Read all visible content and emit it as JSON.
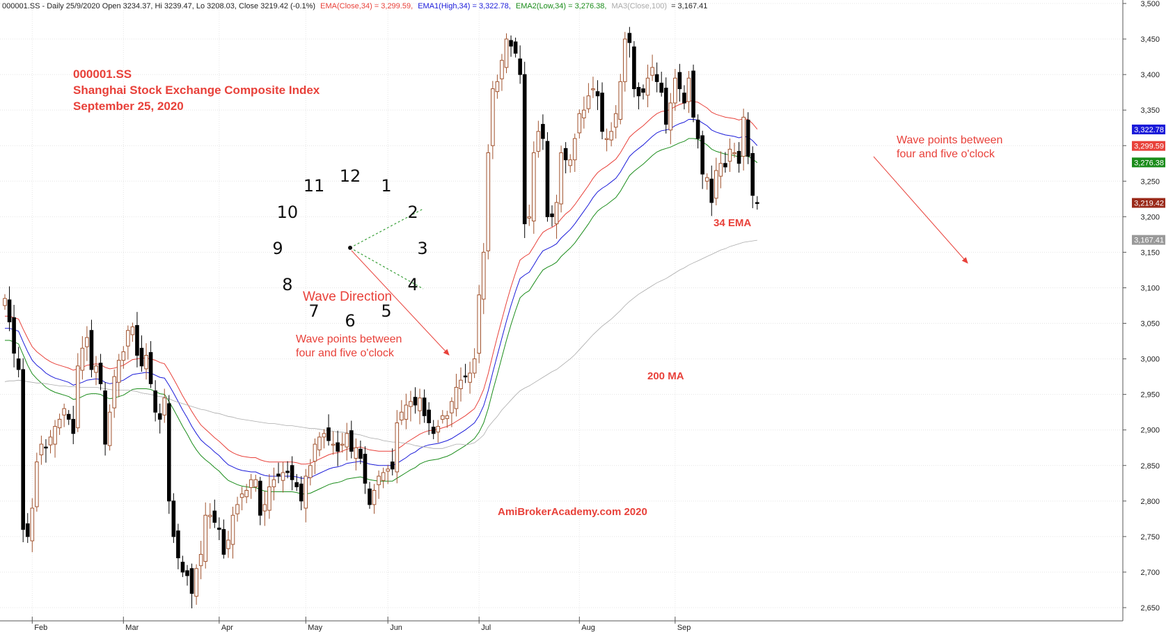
{
  "header": {
    "symbol_line": "000001.SS - Daily 25/9/2020 Open 3234.37, Hi 3239.47, Lo 3208.03, Close 3219.42 (-0.1%)",
    "ema_close": "EMA(Close,34) = 3,299.59,",
    "ema_high": "EMA1(High,34) = 3,322.78,",
    "ema_low": "EMA2(Low,34) = 3,276.38,",
    "ma_close_label": "MA3(Close,100)",
    "ma_close_value": "= 3,167.41"
  },
  "title": {
    "line1": "000001.SS",
    "line2": "Shanghai Stock Exchange Composite Index",
    "line3": "September 25, 2020"
  },
  "annotations": {
    "wave_direction": "Wave  Direction",
    "wave_note_1a": "Wave points between",
    "wave_note_1b": "four and five o'clock",
    "wave_note_2a": "Wave points between",
    "wave_note_2b": "four and five o'clock",
    "ema_label": "34 EMA",
    "ma_label": "200 MA",
    "watermark": "AmiBrokerAcademy.com  2020"
  },
  "clock": {
    "numbers": [
      "12",
      "1",
      "2",
      "3",
      "4",
      "5",
      "6",
      "7",
      "8",
      "9",
      "10",
      "11"
    ]
  },
  "colors": {
    "ema_close": "#e8413a",
    "ema_high": "#1a1ad9",
    "ema_low": "#1a8c1a",
    "ma": "#aaaaaa",
    "candle_up": "#a0522d",
    "candle_down": "#000000",
    "annotation": "#e8413a"
  },
  "chart_data": {
    "type": "candlestick",
    "symbol": "000001.SS",
    "ylim": [
      2635,
      3500
    ],
    "y_ticks": [
      2650,
      2700,
      2750,
      2800,
      2850,
      2900,
      2950,
      3000,
      3050,
      3100,
      3150,
      3200,
      3250,
      3300,
      3350,
      3400,
      3450,
      3500
    ],
    "y_tick_labels": [
      "2,650",
      "2,700",
      "2,750",
      "2,800",
      "2,850",
      "2,900",
      "2,950",
      "3,000",
      "3,050",
      "3,100",
      "3,150",
      "3,200",
      "3,250",
      "3,300",
      "3,350",
      "3,400",
      "3,450",
      "3,500"
    ],
    "x_ticks": [
      {
        "label": "Feb",
        "day": 6
      },
      {
        "label": "Mar",
        "day": 26
      },
      {
        "label": "Apr",
        "day": 47
      },
      {
        "label": "May",
        "day": 66
      },
      {
        "label": "Jun",
        "day": 84
      },
      {
        "label": "Jul",
        "day": 104
      },
      {
        "label": "Aug",
        "day": 126
      },
      {
        "label": "Sep",
        "day": 147
      }
    ],
    "value_badges": [
      {
        "label": "3,322.78",
        "value": 3322.78,
        "color": "#1a1ad9"
      },
      {
        "label": "3,299.59",
        "value": 3299.59,
        "color": "#e8413a"
      },
      {
        "label": "3,276.38",
        "value": 3276.38,
        "color": "#1a8c1a"
      },
      {
        "label": "3,219.42",
        "value": 3219.42,
        "color": "#9a2a1a"
      },
      {
        "label": "3,167.41",
        "value": 3167.41,
        "color": "#999999"
      }
    ],
    "closes": [
      3085,
      3052,
      3008,
      2985,
      2760,
      2750,
      2790,
      2855,
      2880,
      2875,
      2890,
      2905,
      2915,
      2930,
      2915,
      2895,
      2990,
      3015,
      3030,
      2985,
      2990,
      2965,
      2880,
      2925,
      2975,
      2998,
      3010,
      3040,
      3045,
      3005,
      2990,
      3005,
      2965,
      2925,
      2915,
      2945,
      2800,
      2750,
      2720,
      2700,
      2695,
      2670,
      2705,
      2725,
      2780,
      2780,
      2770,
      2760,
      2725,
      2745,
      2780,
      2795,
      2810,
      2815,
      2830,
      2830,
      2780,
      2795,
      2820,
      2830,
      2835,
      2840,
      2840,
      2830,
      2820,
      2800,
      2835,
      2850,
      2880,
      2890,
      2895,
      2885,
      2880,
      2870,
      2880,
      2895,
      2870,
      2875,
      2860,
      2825,
      2795,
      2815,
      2835,
      2840,
      2845,
      2845,
      2910,
      2925,
      2935,
      2940,
      2935,
      2945,
      2920,
      2910,
      2895,
      2905,
      2920,
      2920,
      2940,
      2960,
      2970,
      2975,
      2980,
      3000,
      3090,
      3150,
      3290,
      3380,
      3390,
      3420,
      3450,
      3440,
      3430,
      3400,
      3190,
      3200,
      3290,
      3320,
      3310,
      3200,
      3200,
      3220,
      3290,
      3280,
      3280,
      3310,
      3345,
      3350,
      3370,
      3380,
      3370,
      3320,
      3310,
      3320,
      3345,
      3390,
      3450,
      3445,
      3380,
      3370,
      3375,
      3395,
      3410,
      3390,
      3375,
      3330,
      3360,
      3395,
      3380,
      3360,
      3395,
      3340,
      3310,
      3260,
      3255,
      3220,
      3265,
      3275,
      3270,
      3295,
      3290,
      3275,
      3340,
      3285,
      3230,
      3219
    ],
    "series": [
      {
        "name": "EMA(Close,34)",
        "values": [
          3043,
          3043,
          3041,
          3039,
          3024,
          3010,
          2998,
          2991,
          2986,
          2980,
          2976,
          2973,
          2971,
          2969,
          2967,
          2963,
          2965,
          2967,
          2970,
          2971,
          2972,
          2971,
          2967,
          2965,
          2966,
          2968,
          2970,
          2974,
          2978,
          2979,
          2980,
          2981,
          2980,
          2977,
          2974,
          2973,
          2963,
          2952,
          2940,
          2928,
          2917,
          2905,
          2895,
          2886,
          2880,
          2875,
          2869,
          2864,
          2857,
          2851,
          2848,
          2845,
          2843,
          2842,
          2841,
          2841,
          2838,
          2836,
          2835,
          2835,
          2835,
          2835,
          2835,
          2835,
          2834,
          2832,
          2832,
          2833,
          2836,
          2839,
          2842,
          2845,
          2847,
          2848,
          2850,
          2853,
          2854,
          2855,
          2856,
          2854,
          2852,
          2851,
          2850,
          2850,
          2850,
          2850,
          2853,
          2857,
          2861,
          2866,
          2869,
          2874,
          2877,
          2879,
          2880,
          2881,
          2883,
          2885,
          2888,
          2892,
          2896,
          2900,
          2905,
          2910,
          2920,
          2934,
          2955,
          2981,
          3005,
          3029,
          3053,
          3075,
          3095,
          3113,
          3118,
          3122,
          3132,
          3143,
          3152,
          3155,
          3158,
          3162,
          3170,
          3176,
          3182,
          3190,
          3199,
          3208,
          3217,
          3227,
          3235,
          3240,
          3244,
          3249,
          3254,
          3263,
          3274,
          3285,
          3291,
          3296,
          3301,
          3307,
          3313,
          3318,
          3321,
          3322,
          3324,
          3328,
          3331,
          3333,
          3337,
          3337,
          3336,
          3332,
          3328,
          3322,
          3319,
          3317,
          3315,
          3314,
          3313,
          3311,
          3313,
          3312,
          3307,
          3300
        ]
      },
      {
        "name": "EMA1(High,34)",
        "values": [
          3060,
          3060,
          3058,
          3056,
          3042,
          3029,
          3017,
          3010,
          3005,
          3000,
          2996,
          2993,
          2991,
          2989,
          2987,
          2984,
          2986,
          2988,
          2991,
          2992,
          2993,
          2992,
          2988,
          2986,
          2987,
          2989,
          2991,
          2995,
          2999,
          3000,
          3001,
          3001,
          3000,
          2998,
          2995,
          2993,
          2983,
          2972,
          2960,
          2948,
          2937,
          2926,
          2916,
          2907,
          2901,
          2895,
          2889,
          2884,
          2878,
          2872,
          2868,
          2865,
          2863,
          2862,
          2861,
          2861,
          2858,
          2856,
          2855,
          2855,
          2855,
          2855,
          2855,
          2855,
          2854,
          2852,
          2852,
          2853,
          2856,
          2859,
          2862,
          2865,
          2867,
          2868,
          2870,
          2873,
          2874,
          2875,
          2876,
          2874,
          2872,
          2871,
          2870,
          2870,
          2870,
          2870,
          2873,
          2877,
          2882,
          2886,
          2890,
          2894,
          2897,
          2899,
          2900,
          2901,
          2903,
          2905,
          2908,
          2912,
          2916,
          2920,
          2925,
          2930,
          2942,
          2957,
          2979,
          3006,
          3031,
          3055,
          3079,
          3101,
          3121,
          3139,
          3144,
          3148,
          3158,
          3169,
          3178,
          3182,
          3185,
          3189,
          3197,
          3204,
          3209,
          3217,
          3226,
          3235,
          3244,
          3254,
          3262,
          3267,
          3271,
          3276,
          3281,
          3290,
          3301,
          3312,
          3318,
          3323,
          3328,
          3334,
          3340,
          3345,
          3348,
          3349,
          3351,
          3355,
          3358,
          3360,
          3364,
          3362,
          3361,
          3357,
          3353,
          3347,
          3344,
          3342,
          3340,
          3339,
          3338,
          3336,
          3338,
          3337,
          3331,
          3323
        ]
      },
      {
        "name": "EMA2(Low,34)",
        "values": [
          3026,
          3026,
          3024,
          3021,
          3006,
          2991,
          2979,
          2972,
          2966,
          2960,
          2956,
          2953,
          2951,
          2949,
          2947,
          2943,
          2944,
          2947,
          2950,
          2951,
          2951,
          2950,
          2946,
          2944,
          2945,
          2947,
          2949,
          2953,
          2957,
          2958,
          2958,
          2958,
          2957,
          2954,
          2951,
          2950,
          2940,
          2929,
          2917,
          2905,
          2894,
          2882,
          2872,
          2864,
          2858,
          2853,
          2847,
          2842,
          2835,
          2829,
          2826,
          2823,
          2821,
          2820,
          2819,
          2819,
          2816,
          2814,
          2813,
          2813,
          2813,
          2813,
          2813,
          2813,
          2812,
          2810,
          2810,
          2811,
          2814,
          2817,
          2820,
          2823,
          2825,
          2826,
          2828,
          2831,
          2832,
          2833,
          2834,
          2832,
          2830,
          2829,
          2828,
          2828,
          2828,
          2828,
          2832,
          2836,
          2840,
          2844,
          2847,
          2852,
          2855,
          2857,
          2858,
          2859,
          2861,
          2863,
          2866,
          2870,
          2874,
          2878,
          2883,
          2888,
          2897,
          2910,
          2930,
          2955,
          2978,
          3002,
          3026,
          3048,
          3068,
          3086,
          3092,
          3096,
          3106,
          3116,
          3125,
          3129,
          3132,
          3136,
          3144,
          3150,
          3156,
          3163,
          3172,
          3181,
          3190,
          3200,
          3208,
          3213,
          3217,
          3222,
          3227,
          3236,
          3247,
          3258,
          3264,
          3269,
          3274,
          3280,
          3286,
          3291,
          3294,
          3296,
          3298,
          3301,
          3304,
          3306,
          3310,
          3310,
          3309,
          3305,
          3301,
          3295,
          3292,
          3290,
          3288,
          3287,
          3286,
          3284,
          3286,
          3285,
          3281,
          3276
        ]
      },
      {
        "name": "MA3(Close,100)",
        "values": [
          2968,
          2969,
          2969,
          2970,
          2969,
          2968,
          2967,
          2966,
          2966,
          2965,
          2964,
          2963,
          2962,
          2962,
          2961,
          2961,
          2960,
          2960,
          2960,
          2960,
          2960,
          2959,
          2958,
          2957,
          2956,
          2956,
          2956,
          2956,
          2955,
          2954,
          2952,
          2951,
          2950,
          2948,
          2947,
          2946,
          2944,
          2941,
          2939,
          2937,
          2935,
          2933,
          2931,
          2929,
          2928,
          2926,
          2924,
          2923,
          2921,
          2919,
          2918,
          2916,
          2915,
          2914,
          2913,
          2912,
          2911,
          2910,
          2909,
          2909,
          2908,
          2907,
          2906,
          2906,
          2905,
          2904,
          2903,
          2902,
          2902,
          2901,
          2900,
          2899,
          2898,
          2897,
          2897,
          2896,
          2895,
          2894,
          2893,
          2891,
          2889,
          2888,
          2887,
          2885,
          2884,
          2883,
          2883,
          2882,
          2881,
          2880,
          2878,
          2877,
          2876,
          2875,
          2874,
          2874,
          2874,
          2876,
          2878,
          2880,
          2880,
          2879,
          2880,
          2882,
          2887,
          2893,
          2904,
          2912,
          2919,
          2928,
          2935,
          2942,
          2949,
          2955,
          2959,
          2962,
          2966,
          2970,
          2974,
          2978,
          2982,
          2985,
          2990,
          2995,
          3000,
          3006,
          3013,
          3020,
          3027,
          3034,
          3040,
          3046,
          3051,
          3056,
          3062,
          3068,
          3075,
          3081,
          3086,
          3091,
          3095,
          3099,
          3103,
          3107,
          3110,
          3113,
          3117,
          3121,
          3125,
          3128,
          3132,
          3135,
          3138,
          3141,
          3144,
          3147,
          3150,
          3153,
          3155,
          3158,
          3160,
          3162,
          3164,
          3165,
          3166,
          3167
        ]
      }
    ]
  }
}
